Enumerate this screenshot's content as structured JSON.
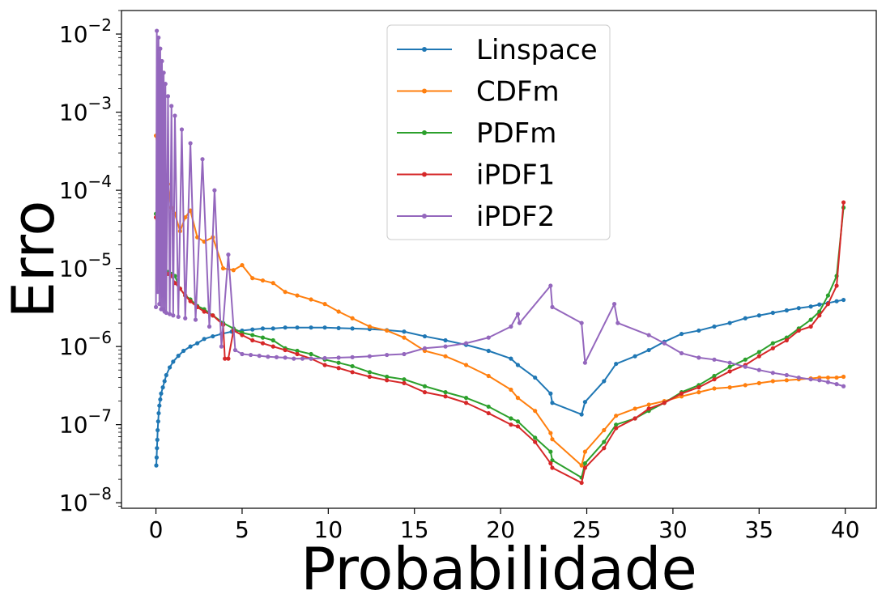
{
  "chart_data": {
    "type": "line",
    "xlabel": "Probabilidade",
    "ylabel": "Erro",
    "xlim": [
      -2,
      41.8
    ],
    "ylim": [
      8.5e-09,
      0.02
    ],
    "yscale": "log",
    "xticks": [
      0,
      5,
      10,
      15,
      20,
      25,
      30,
      35,
      40
    ],
    "yticks": [
      {
        "value": 1e-08,
        "base": "10",
        "exp": "−8"
      },
      {
        "value": 1e-07,
        "base": "10",
        "exp": "−7"
      },
      {
        "value": 1e-06,
        "base": "10",
        "exp": "−6"
      },
      {
        "value": 1e-05,
        "base": "10",
        "exp": "−5"
      },
      {
        "value": 0.0001,
        "base": "10",
        "exp": "−4"
      },
      {
        "value": 0.001,
        "base": "10",
        "exp": "−3"
      },
      {
        "value": 0.01,
        "base": "10",
        "exp": "−2"
      }
    ],
    "grid": false,
    "legend_position": "top-center",
    "series": [
      {
        "name": "Linspace",
        "color": "#1f77b4",
        "x": [
          0.02,
          0.04,
          0.06,
          0.08,
          0.1,
          0.13,
          0.16,
          0.2,
          0.25,
          0.3,
          0.4,
          0.5,
          0.6,
          0.8,
          1.0,
          1.3,
          1.6,
          2.0,
          2.4,
          2.8,
          3.3,
          3.8,
          4.4,
          5.0,
          5.6,
          6.2,
          6.8,
          7.5,
          8.2,
          9.0,
          9.8,
          10.6,
          11.4,
          12.4,
          13.4,
          14.4,
          15.6,
          16.8,
          18.0,
          19.3,
          20.6,
          21.0,
          22.0,
          22.9,
          23.0,
          24.7,
          24.9,
          26.0,
          26.7,
          27.8,
          28.6,
          29.5,
          30.5,
          31.5,
          32.4,
          33.3,
          34.2,
          35.0,
          35.8,
          36.6,
          37.3,
          38.0,
          38.5,
          39.0,
          39.5,
          39.9
        ],
        "y": [
          3e-08,
          3.8e-08,
          5e-08,
          6.4e-08,
          8.5e-08,
          1.1e-07,
          1.4e-07,
          1.75e-07,
          2.1e-07,
          2.5e-07,
          3e-07,
          3.6e-07,
          4.3e-07,
          5.4e-07,
          6.4e-07,
          7.6e-07,
          8.8e-07,
          1e-06,
          1.1e-06,
          1.25e-06,
          1.35e-06,
          1.45e-06,
          1.55e-06,
          1.6e-06,
          1.65e-06,
          1.7e-06,
          1.7e-06,
          1.75e-06,
          1.75e-06,
          1.75e-06,
          1.75e-06,
          1.72e-06,
          1.7e-06,
          1.67e-06,
          1.62e-06,
          1.55e-06,
          1.35e-06,
          1.2e-06,
          1.05e-06,
          8.8e-07,
          7e-07,
          5.8e-07,
          4e-07,
          2.5e-07,
          1.9e-07,
          1.35e-07,
          1.95e-07,
          3.6e-07,
          6e-07,
          7.5e-07,
          9e-07,
          1.15e-06,
          1.45e-06,
          1.6e-06,
          1.8e-06,
          2e-06,
          2.3e-06,
          2.5e-06,
          2.7e-06,
          2.9e-06,
          3.1e-06,
          3.25e-06,
          3.45e-06,
          3.6e-06,
          3.8e-06,
          3.95e-06
        ]
      },
      {
        "name": "CDFm",
        "color": "#ff7f0e",
        "x": [
          0.0,
          0.15,
          0.3,
          0.5,
          0.7,
          0.9,
          1.1,
          1.4,
          1.7,
          2.0,
          2.4,
          2.8,
          3.3,
          3.9,
          4.5,
          5.0,
          5.6,
          6.2,
          6.8,
          7.5,
          8.2,
          9.0,
          9.8,
          10.6,
          11.4,
          12.4,
          13.4,
          14.4,
          15.6,
          16.8,
          18.0,
          19.3,
          20.6,
          21.0,
          22.0,
          22.9,
          23.0,
          24.7,
          24.9,
          26.0,
          26.7,
          27.8,
          28.6,
          29.5,
          30.5,
          31.5,
          32.4,
          33.3,
          34.2,
          35.0,
          35.8,
          36.6,
          37.3,
          38.0,
          38.5,
          39.0,
          39.5,
          39.9
        ],
        "y": [
          0.0005,
          0.0003,
          0.00015,
          0.0001,
          0.00012,
          6e-05,
          5e-05,
          3e-05,
          4.5e-05,
          5.5e-05,
          2.5e-05,
          2.2e-05,
          2.5e-05,
          1e-05,
          9.5e-06,
          1.1e-05,
          7.5e-06,
          7e-06,
          6.5e-06,
          5e-06,
          4.5e-06,
          4e-06,
          3.5e-06,
          2.8e-06,
          2.3e-06,
          1.8e-06,
          1.6e-06,
          1.3e-06,
          8.8e-07,
          7.5e-07,
          5.8e-07,
          4.2e-07,
          2.8e-07,
          2.2e-07,
          1.5e-07,
          7.8e-08,
          6.5e-08,
          3e-08,
          4.5e-08,
          8.5e-08,
          1.3e-07,
          1.6e-07,
          1.8e-07,
          2e-07,
          2.3e-07,
          2.6e-07,
          2.9e-07,
          3e-07,
          3.2e-07,
          3.4e-07,
          3.6e-07,
          3.7e-07,
          3.8e-07,
          3.9e-07,
          4e-07,
          4e-07,
          4e-07,
          4.1e-07
        ]
      },
      {
        "name": "PDFm",
        "color": "#2ca02c",
        "x": [
          0.0,
          0.15,
          0.3,
          0.5,
          0.7,
          0.9,
          1.1,
          1.4,
          1.7,
          2.0,
          2.4,
          2.8,
          3.3,
          3.9,
          4.5,
          5.0,
          5.6,
          6.2,
          6.8,
          7.5,
          8.2,
          9.0,
          9.8,
          10.6,
          11.4,
          12.4,
          13.4,
          14.4,
          15.6,
          16.8,
          18.0,
          19.3,
          20.6,
          21.0,
          22.0,
          22.9,
          23.0,
          24.7,
          24.9,
          26.0,
          26.7,
          27.8,
          28.6,
          29.5,
          30.5,
          31.5,
          32.4,
          33.3,
          34.2,
          35.0,
          35.8,
          36.6,
          37.3,
          38.0,
          38.5,
          39.0,
          39.5,
          39.9
        ],
        "y": [
          5e-05,
          2e-05,
          1.2e-05,
          1e-05,
          9e-06,
          8.5e-06,
          8e-06,
          5.5e-06,
          4.5e-06,
          4e-06,
          3.3e-06,
          3e-06,
          2.5e-06,
          2e-06,
          1.7e-06,
          1.5e-06,
          1.4e-06,
          1.3e-06,
          1.2e-06,
          9.5e-07,
          8.8e-07,
          8e-07,
          6.8e-07,
          6.2e-07,
          5.6e-07,
          4.7e-07,
          4.1e-07,
          3.8e-07,
          3.1e-07,
          2.6e-07,
          2.2e-07,
          1.7e-07,
          1.2e-07,
          1.1e-07,
          6.8e-08,
          4.5e-08,
          3.5e-08,
          2.1e-08,
          3.2e-08,
          6e-08,
          1e-07,
          1.2e-07,
          1.5e-07,
          1.9e-07,
          2.6e-07,
          3.2e-07,
          4.2e-07,
          5.5e-07,
          6.8e-07,
          8.5e-07,
          1.1e-06,
          1.3e-06,
          1.7e-06,
          2.2e-06,
          2.8e-06,
          4.5e-06,
          8e-06,
          6e-05
        ]
      },
      {
        "name": "iPDF1",
        "color": "#d62728",
        "x": [
          0.0,
          0.15,
          0.3,
          0.5,
          0.7,
          0.9,
          1.1,
          1.4,
          1.7,
          2.0,
          2.4,
          2.8,
          3.3,
          3.9,
          4.0,
          4.2,
          4.5,
          5.0,
          5.6,
          6.2,
          6.8,
          7.5,
          8.2,
          9.0,
          9.8,
          10.6,
          11.4,
          12.4,
          13.4,
          14.4,
          15.6,
          16.8,
          18.0,
          19.3,
          20.6,
          21.0,
          22.0,
          22.9,
          23.0,
          24.7,
          24.9,
          26.0,
          26.7,
          27.8,
          28.6,
          29.5,
          30.5,
          31.5,
          32.4,
          33.3,
          34.2,
          35.0,
          35.8,
          36.6,
          37.3,
          38.0,
          38.5,
          39.0,
          39.5,
          39.9
        ],
        "y": [
          4.5e-05,
          2e-05,
          1.2e-05,
          9e-06,
          8.5e-06,
          8e-06,
          6.5e-06,
          5.5e-06,
          4.5e-06,
          3.8e-06,
          3.2e-06,
          2.8e-06,
          2.5e-06,
          1.9e-06,
          7e-07,
          7e-07,
          1.6e-06,
          1.4e-06,
          1.2e-06,
          1.1e-06,
          1e-06,
          9e-07,
          8e-07,
          7e-07,
          5.8e-07,
          5.3e-07,
          4.7e-07,
          4.1e-07,
          3.7e-07,
          3.4e-07,
          2.6e-07,
          2.3e-07,
          1.9e-07,
          1.4e-07,
          1e-07,
          9.5e-08,
          6e-08,
          3.2e-08,
          2.8e-08,
          1.8e-08,
          2.8e-08,
          5e-08,
          9e-08,
          1.2e-07,
          1.6e-07,
          1.9e-07,
          2.5e-07,
          3e-07,
          3.8e-07,
          4.8e-07,
          5.8e-07,
          7.5e-07,
          9.5e-07,
          1.2e-06,
          1.6e-06,
          1.8e-06,
          2.5e-06,
          3.5e-06,
          6e-06,
          7e-05
        ]
      },
      {
        "name": "iPDF2",
        "color": "#9467bd",
        "x": [
          0.0,
          0.05,
          0.1,
          0.15,
          0.2,
          0.25,
          0.3,
          0.35,
          0.4,
          0.45,
          0.5,
          0.55,
          0.6,
          0.7,
          0.8,
          0.9,
          1.0,
          1.1,
          1.3,
          1.5,
          1.7,
          2.0,
          2.3,
          2.7,
          3.1,
          3.4,
          3.8,
          4.2,
          4.6,
          5.0,
          5.5,
          6.0,
          6.5,
          7.0,
          7.5,
          8.0,
          8.5,
          9.0,
          9.8,
          10.6,
          11.4,
          12.4,
          13.4,
          14.4,
          15.6,
          16.8,
          18.0,
          19.3,
          20.6,
          21.0,
          21.1,
          22.9,
          23.0,
          24.7,
          24.9,
          26.6,
          26.8,
          28.6,
          29.5,
          30.5,
          31.5,
          32.4,
          33.3,
          34.2,
          35.0,
          35.8,
          36.6,
          37.3,
          38.0,
          38.5,
          39.0,
          39.5,
          39.9
        ],
        "y": [
          3.2e-06,
          0.011,
          5e-06,
          0.009,
          3.5e-06,
          0.0065,
          3e-06,
          0.0045,
          3e-06,
          0.0032,
          2.8e-06,
          0.0023,
          2.7e-06,
          0.0016,
          2.6e-06,
          0.0012,
          2.5e-06,
          0.0009,
          2.4e-06,
          0.0006,
          2.3e-06,
          0.0004,
          2.2e-06,
          0.00025,
          1.8e-06,
          0.0001,
          1e-06,
          1.5e-05,
          9e-07,
          8e-07,
          7.8e-07,
          7.6e-07,
          7.4e-07,
          7.3e-07,
          7.2e-07,
          7e-07,
          7e-07,
          7e-07,
          7.1e-07,
          7.2e-07,
          7.3e-07,
          7.5e-07,
          7.8e-07,
          8e-07,
          9.5e-07,
          1e-06,
          1.1e-06,
          1.3e-06,
          1.8e-06,
          2.6e-06,
          2e-06,
          6e-06,
          3.2e-06,
          2e-06,
          6.2e-07,
          3.5e-06,
          2e-06,
          1.4e-06,
          1.1e-06,
          8.2e-07,
          7.2e-07,
          6.8e-07,
          6.2e-07,
          5.5e-07,
          5e-07,
          4.6e-07,
          4.3e-07,
          4e-07,
          3.8e-07,
          3.7e-07,
          3.5e-07,
          3.3e-07,
          3.1e-07
        ]
      }
    ]
  }
}
